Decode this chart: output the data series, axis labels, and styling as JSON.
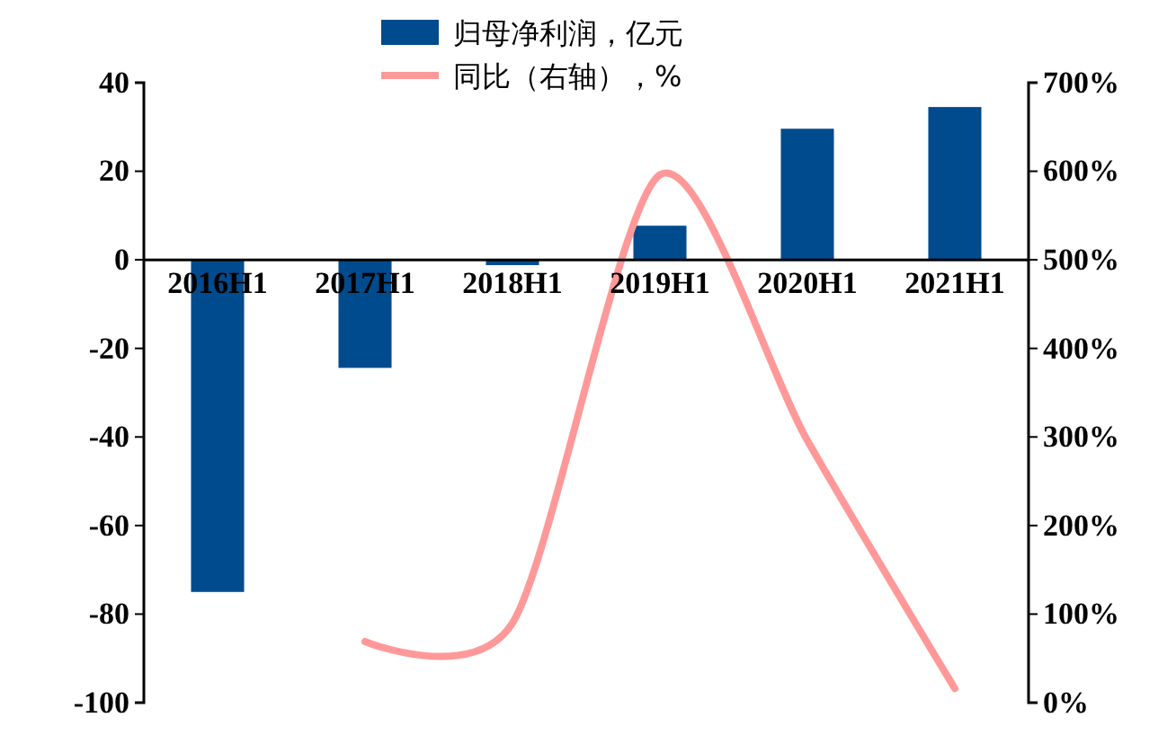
{
  "chart_data": {
    "type": "bar",
    "categories": [
      "2016H1",
      "2017H1",
      "2018H1",
      "2019H1",
      "2020H1",
      "2021H1"
    ],
    "series": [
      {
        "name": "归母净利润，亿元",
        "color": "#004b8d",
        "values": [
          -75,
          -24.4,
          -1.2,
          7.7,
          29.6,
          34.5
        ]
      },
      {
        "name": "同比（右轴），%",
        "type": "line",
        "axis": "y2",
        "color": "#ff9999",
        "values": [
          null,
          69,
          90,
          596,
          296,
          16
        ]
      }
    ],
    "ylim": [
      -100,
      40
    ],
    "yticks": [
      -100,
      -80,
      -60,
      -40,
      -20,
      0,
      20,
      40
    ],
    "y2lim": [
      0,
      700
    ],
    "y2ticks": [
      {
        "value": 0,
        "label": "0%"
      },
      {
        "value": 100,
        "label": "100%"
      },
      {
        "value": 200,
        "label": "200%"
      },
      {
        "value": 300,
        "label": "300%"
      },
      {
        "value": 400,
        "label": "400%"
      },
      {
        "value": 500,
        "label": "500%"
      },
      {
        "value": 600,
        "label": "600%"
      },
      {
        "value": 700,
        "label": "700%"
      }
    ],
    "grid": false,
    "legend": "top",
    "marker": "none",
    "line_style": "solid"
  }
}
